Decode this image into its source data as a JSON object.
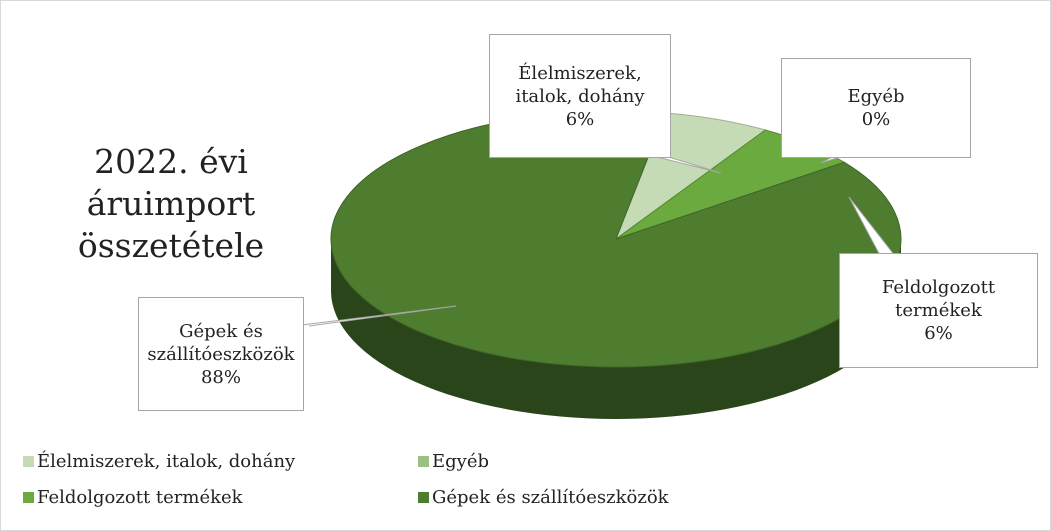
{
  "chart_data": {
    "type": "pie",
    "title": "2022. évi áruimport összetétele",
    "categories": [
      "Élelmiszerek, italok, dohány",
      "Egyéb",
      "Feldolgozott termékek",
      "Gépek és szállítóeszközök"
    ],
    "values": [
      6,
      0,
      6,
      88
    ],
    "value_labels": [
      "6%",
      "0%",
      "6%",
      "88%"
    ],
    "colors": [
      "#c5dbb6",
      "#9cc084",
      "#6aaa3f",
      "#4e7d30"
    ],
    "legend": "bottom"
  }
}
